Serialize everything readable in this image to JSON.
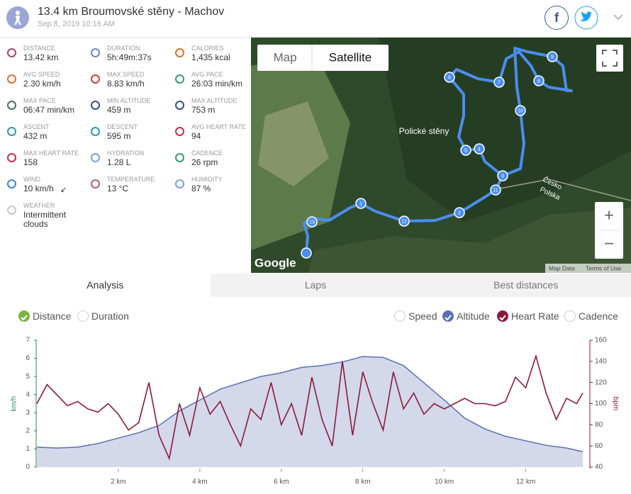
{
  "header": {
    "title": "13.4 km Broumovské stěny - Machov",
    "date": "Sep 8, 2019 10:16 AM",
    "facebook": "f"
  },
  "stats": [
    {
      "label": "DISTANCE",
      "value": "13.42 km"
    },
    {
      "label": "DURATION",
      "value": "5h:49m:37s"
    },
    {
      "label": "CALORIES",
      "value": "1,435 kcal"
    },
    {
      "label": "AVG SPEED",
      "value": "2.30 km/h"
    },
    {
      "label": "MAX SPEED",
      "value": "8.83 km/h"
    },
    {
      "label": "AVG PACE",
      "value": "26:03 min/km"
    },
    {
      "label": "MAX PACE",
      "value": "06:47 min/km"
    },
    {
      "label": "MIN ALTITUDE",
      "value": "459 m"
    },
    {
      "label": "MAX ALTITUDE",
      "value": "753 m"
    },
    {
      "label": "ASCENT",
      "value": "432 m"
    },
    {
      "label": "DESCENT",
      "value": "595 m"
    },
    {
      "label": "AVG HEART RATE",
      "value": "94"
    },
    {
      "label": "MAX HEART RATE",
      "value": "158"
    },
    {
      "label": "HYDRATION",
      "value": "1.28 L"
    },
    {
      "label": "CADENCE",
      "value": "26 rpm"
    },
    {
      "label": "WIND",
      "value": "10 km/h"
    },
    {
      "label": "TEMPERATURE",
      "value": "13 °C"
    },
    {
      "label": "HUMIDITY",
      "value": "87 %"
    },
    {
      "label": "WEATHER",
      "value": "Intermittent clouds"
    }
  ],
  "map": {
    "buttons": [
      "Map",
      "Satellite"
    ],
    "place": "Polické stěny",
    "border": [
      "Česko",
      "Polska"
    ],
    "brand": "Google",
    "footer": [
      "Map Data",
      "Terms of Use"
    ],
    "zoom": [
      "+",
      "−"
    ],
    "markers": [
      "1",
      "2",
      "3",
      "4",
      "5",
      "6",
      "7",
      "8",
      "9",
      "10",
      "11",
      "12",
      "13"
    ]
  },
  "tabs": [
    "Analysis",
    "Laps",
    "Best distances"
  ],
  "chart_data": {
    "type": "line",
    "x_modes": [
      "Distance",
      "Duration"
    ],
    "unselected_series": [
      "Speed",
      "Cadence"
    ],
    "ylabel": "km/h",
    "y2label": "bpm",
    "xlim": [
      0,
      13.4
    ],
    "xticks": [
      {
        "value": 2,
        "label": "2 km"
      },
      {
        "value": 4,
        "label": "4 km"
      },
      {
        "value": 6,
        "label": "6 km"
      },
      {
        "value": 8,
        "label": "8 km"
      },
      {
        "value": 10,
        "label": "10 km"
      },
      {
        "value": 12,
        "label": "12 km"
      }
    ],
    "ylim": [
      0,
      7
    ],
    "yticks": [
      0,
      1,
      2,
      3,
      4,
      5,
      6,
      7
    ],
    "y2lim": [
      40,
      160
    ],
    "y2ticks": [
      40,
      60,
      80,
      100,
      120,
      140,
      160
    ],
    "series": [
      {
        "name": "Altitude",
        "color": "#5b6fb5",
        "fill": true,
        "axis": "y",
        "x": [
          0,
          0.5,
          1,
          1.5,
          2,
          2.5,
          3,
          3.5,
          4,
          4.5,
          5,
          5.5,
          6,
          6.5,
          7,
          7.5,
          8,
          8.5,
          9,
          9.5,
          10,
          10.5,
          11,
          11.5,
          12,
          12.5,
          13,
          13.4
        ],
        "values": [
          1.1,
          1.05,
          1.1,
          1.3,
          1.6,
          1.9,
          2.3,
          3.1,
          3.7,
          4.3,
          4.65,
          5.0,
          5.2,
          5.5,
          5.6,
          5.8,
          6.1,
          6.05,
          5.6,
          4.65,
          3.7,
          2.7,
          2.1,
          1.7,
          1.45,
          1.2,
          1.05,
          0.85
        ]
      },
      {
        "name": "Heart Rate",
        "color": "#8b1a3a",
        "axis": "y2",
        "x": [
          0,
          0.25,
          0.5,
          0.75,
          1,
          1.25,
          1.5,
          1.75,
          2,
          2.25,
          2.5,
          2.75,
          3,
          3.25,
          3.5,
          3.75,
          4,
          4.25,
          4.5,
          4.75,
          5,
          5.25,
          5.5,
          5.75,
          6,
          6.25,
          6.5,
          6.75,
          7,
          7.25,
          7.5,
          7.75,
          8,
          8.25,
          8.5,
          8.75,
          9,
          9.25,
          9.5,
          9.75,
          10,
          10.25,
          10.5,
          10.75,
          11,
          11.25,
          11.5,
          11.75,
          12,
          12.25,
          12.5,
          12.75,
          13,
          13.25,
          13.4
        ],
        "values": [
          100,
          118,
          108,
          98,
          102,
          95,
          92,
          100,
          90,
          75,
          82,
          120,
          70,
          48,
          100,
          70,
          115,
          90,
          102,
          80,
          60,
          95,
          85,
          120,
          80,
          100,
          70,
          125,
          85,
          60,
          140,
          70,
          130,
          100,
          75,
          130,
          95,
          110,
          90,
          100,
          95,
          100,
          105,
          100,
          100,
          98,
          102,
          125,
          115,
          145,
          110,
          85,
          105,
          100,
          110
        ]
      }
    ]
  }
}
